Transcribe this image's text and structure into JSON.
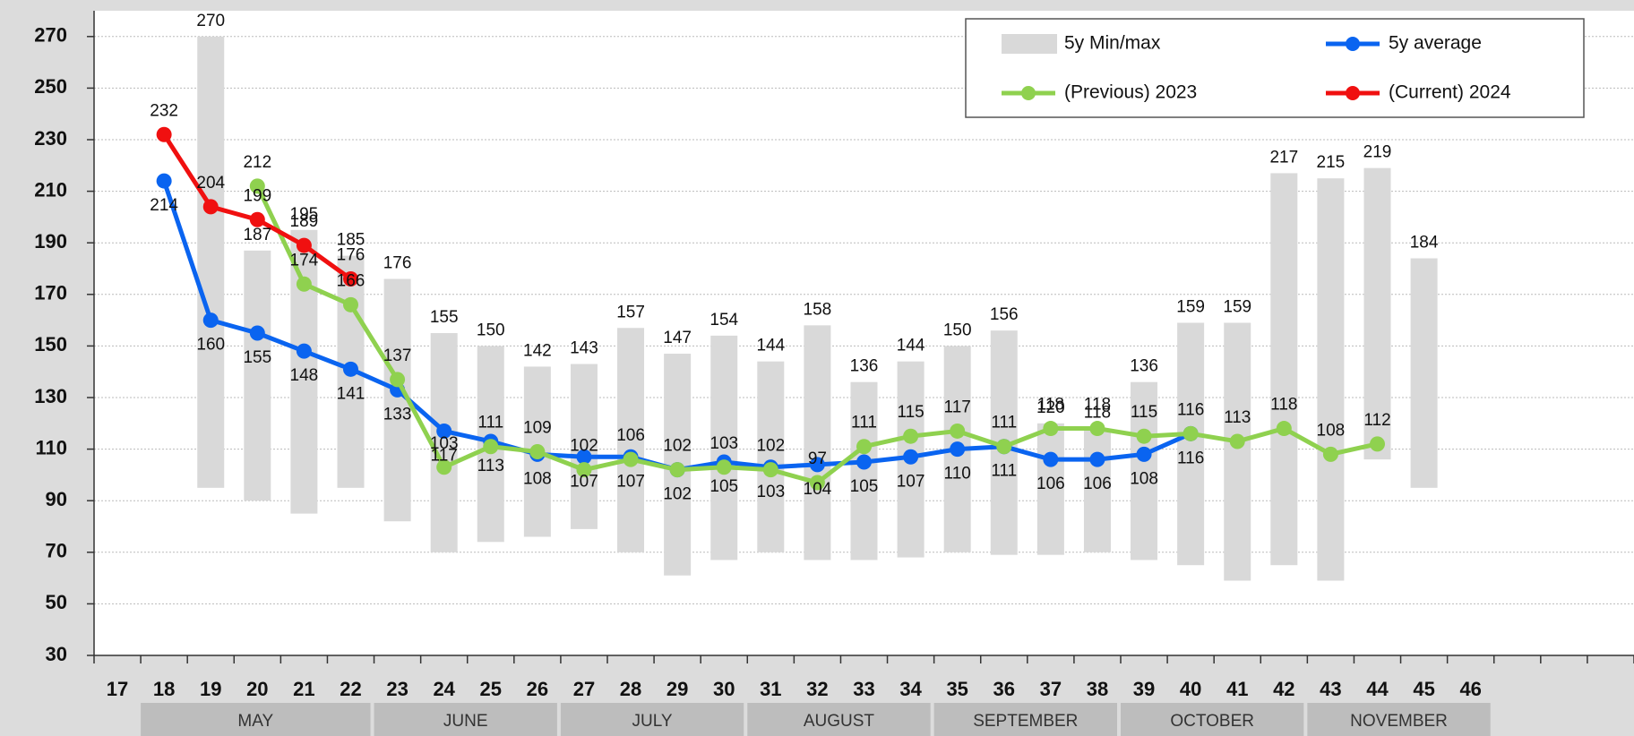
{
  "chart_data": {
    "type": "line",
    "categories": [
      "17",
      "18",
      "19",
      "20",
      "21",
      "22",
      "23",
      "24",
      "25",
      "26",
      "27",
      "28",
      "29",
      "30",
      "31",
      "32",
      "33",
      "34",
      "35",
      "36",
      "37",
      "38",
      "39",
      "40",
      "41",
      "42",
      "43",
      "44",
      "45",
      "46",
      null,
      null,
      null
    ],
    "ylim": [
      30,
      280
    ],
    "yticks": [
      30,
      50,
      70,
      90,
      110,
      130,
      150,
      170,
      190,
      210,
      230,
      250,
      270
    ],
    "grid": true,
    "series": [
      {
        "name": "5y Min/max",
        "color": "#d9d9d9",
        "type": "range",
        "low": [
          null,
          null,
          95,
          90,
          85,
          95,
          82,
          70,
          74,
          76,
          79,
          70,
          61,
          67,
          70,
          67,
          67,
          68,
          70,
          69,
          69,
          70,
          67,
          65,
          59,
          65,
          59,
          106,
          95,
          null,
          null,
          null,
          null
        ],
        "high": [
          null,
          null,
          270,
          187,
          195,
          185,
          176,
          155,
          150,
          142,
          143,
          157,
          147,
          154,
          144,
          158,
          136,
          144,
          150,
          156,
          120,
          118,
          136,
          159,
          159,
          217,
          215,
          219,
          184,
          null,
          null,
          null,
          null
        ]
      },
      {
        "name": "5y average",
        "color": "#0a64f0",
        "values": [
          null,
          214,
          160,
          155,
          148,
          141,
          133,
          117,
          113,
          108,
          107,
          107,
          102,
          105,
          103,
          104,
          105,
          107,
          110,
          111,
          106,
          106,
          108,
          116,
          null,
          null,
          null,
          null,
          null,
          null,
          null,
          null,
          null
        ]
      },
      {
        "name": "(Previous) 2023",
        "color": "#8fd14f",
        "values": [
          null,
          null,
          null,
          212,
          174,
          166,
          137,
          103,
          111,
          109,
          102,
          106,
          102,
          103,
          102,
          97,
          111,
          115,
          117,
          111,
          118,
          118,
          115,
          116,
          113,
          118,
          108,
          112,
          null,
          null,
          null,
          null,
          null
        ]
      },
      {
        "name": "(Current) 2024",
        "color": "#f01010",
        "values": [
          null,
          232,
          204,
          199,
          189,
          176,
          null,
          null,
          null,
          null,
          null,
          null,
          null,
          null,
          null,
          null,
          null,
          null,
          null,
          null,
          null,
          null,
          null,
          null,
          null,
          null,
          null,
          null,
          null,
          null,
          null,
          null,
          null
        ]
      }
    ],
    "months": [
      {
        "label": "MAY",
        "from": "18",
        "to": "22"
      },
      {
        "label": "JUNE",
        "from": "23",
        "to": "26"
      },
      {
        "label": "JULY",
        "from": "27",
        "to": "30"
      },
      {
        "label": "AUGUST",
        "from": "31",
        "to": "34"
      },
      {
        "label": "SEPTEMBER",
        "from": "35",
        "to": "38"
      },
      {
        "label": "OCTOBER",
        "from": "39",
        "to": "42"
      },
      {
        "label": "NOVEMBER",
        "from": "43",
        "to": "46"
      }
    ]
  }
}
